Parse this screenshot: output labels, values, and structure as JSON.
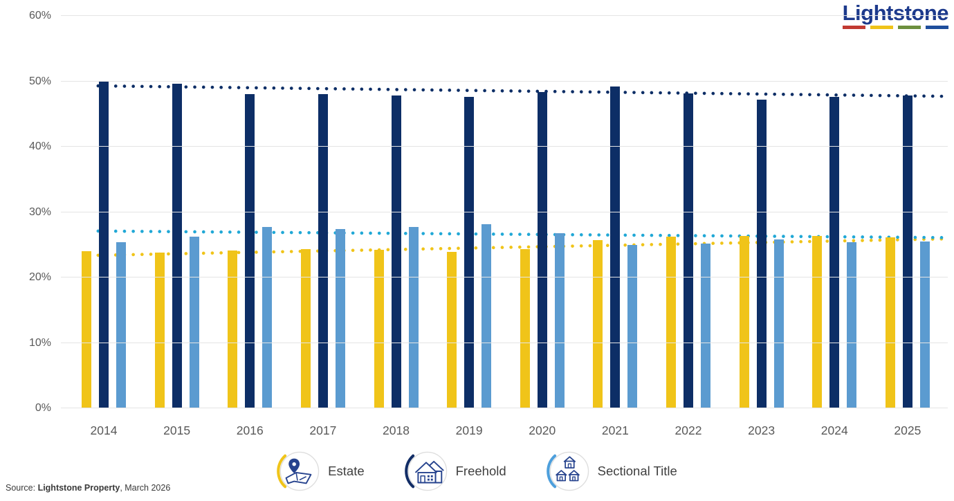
{
  "logo": {
    "text": "Lightstone",
    "underline_colors": [
      "#C13A32",
      "#EFC319",
      "#6C8F3E",
      "#1F4E9C"
    ]
  },
  "source": {
    "prefix": "Source: ",
    "publisher": "Lightstone Property",
    "suffix": ", March 2026"
  },
  "legend": {
    "items": [
      {
        "label": "Estate",
        "icon": "estate-map-pin-icon",
        "arc_color": "#F0C419"
      },
      {
        "label": "Freehold",
        "icon": "freehold-house-icon",
        "arc_color": "#122D66"
      },
      {
        "label": "Sectional Title",
        "icon": "sectional-title-houses-icon",
        "arc_color": "#4D9FDC"
      }
    ]
  },
  "chart_data": {
    "type": "bar",
    "title": "",
    "xlabel": "",
    "ylabel": "",
    "categories": [
      "2014",
      "2015",
      "2016",
      "2017",
      "2018",
      "2019",
      "2020",
      "2021",
      "2022",
      "2023",
      "2024",
      "2025"
    ],
    "series": [
      {
        "name": "Estate",
        "color": "#F0C419",
        "values": [
          24.0,
          23.8,
          24.1,
          24.3,
          24.2,
          23.9,
          24.3,
          25.7,
          26.2,
          26.3,
          26.4,
          26.1
        ]
      },
      {
        "name": "Freehold",
        "color": "#0D2E66",
        "values": [
          50.0,
          49.6,
          48.0,
          48.0,
          47.8,
          47.6,
          48.4,
          49.2,
          48.2,
          47.2,
          47.6,
          47.8
        ]
      },
      {
        "name": "Sectional Title",
        "color": "#5B9BD0",
        "values": [
          25.4,
          26.2,
          27.7,
          27.4,
          27.7,
          28.2,
          26.8,
          25.0,
          25.2,
          25.8,
          25.4,
          25.5
        ]
      }
    ],
    "trend_lines": [
      {
        "series": "Estate",
        "color": "#F0C419",
        "start": 23.4,
        "end": 25.9
      },
      {
        "series": "Freehold",
        "color": "#0D2E66",
        "start": 49.3,
        "end": 47.7
      },
      {
        "series": "Sectional Title",
        "color": "#21A8D6",
        "start": 27.1,
        "end": 26.1
      }
    ],
    "ylim": [
      0,
      60
    ],
    "yticks": [
      "0%",
      "10%",
      "20%",
      "30%",
      "40%",
      "50%",
      "60%"
    ],
    "grid": true,
    "legend_position": "bottom"
  }
}
